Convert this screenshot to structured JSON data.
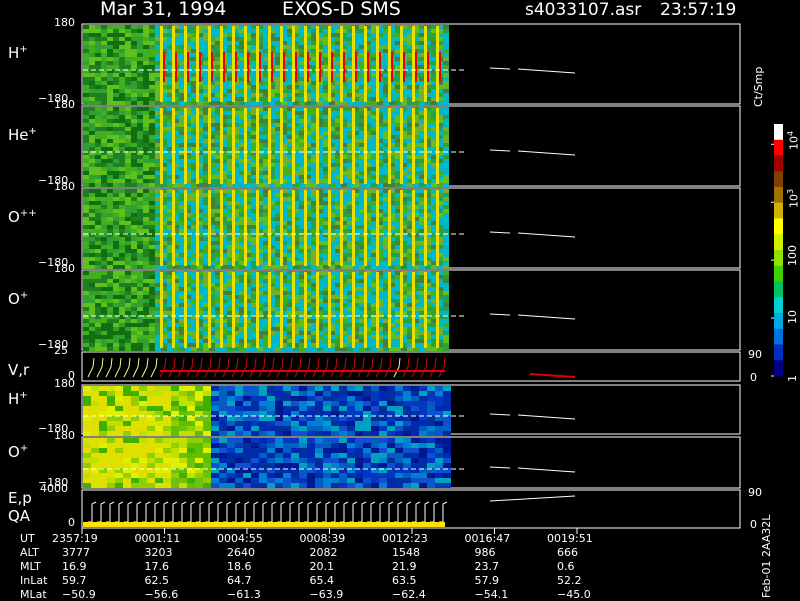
{
  "header": {
    "date": "Mar 31, 1994",
    "mission": "EXOS-D SMS",
    "file": "s4033107.asr",
    "time": "23:57:19"
  },
  "side_label": "Feb-01 2AA32L",
  "chart_data": {
    "type": "heatmap",
    "title": "Mar 31, 1994   EXOS-D SMS",
    "panels": [
      {
        "name": "H+",
        "species": "H",
        "charge": "+",
        "y_top": "180",
        "y_bottom": "−180",
        "pattern": "pitch"
      },
      {
        "name": "He+",
        "species": "He",
        "charge": "+",
        "y_top": "180",
        "y_bottom": "−180",
        "pattern": "pitch"
      },
      {
        "name": "O++",
        "species": "O",
        "charge": "++",
        "y_top": "180",
        "y_bottom": "−180",
        "pattern": "pitch"
      },
      {
        "name": "O+",
        "species": "O",
        "charge": "+",
        "y_top": "180",
        "y_bottom": "−180",
        "pattern": "pitch"
      },
      {
        "name": "V,r",
        "species": "V,r",
        "charge": "",
        "y_top": "25",
        "y_bottom": "0",
        "right_top": "90",
        "right_bottom": "0",
        "pattern": "line"
      },
      {
        "name": "H+",
        "species": "H",
        "charge": "+",
        "y_top": "180",
        "y_bottom": "−180",
        "pattern": "energy"
      },
      {
        "name": "O+",
        "species": "O",
        "charge": "+",
        "y_top": "180",
        "y_bottom": "−180",
        "pattern": "energy"
      },
      {
        "name": "E,p QA",
        "species": "E,p",
        "species2": "QA",
        "charge": "",
        "y_top": "4000",
        "y_bottom": "0",
        "right_top": "90",
        "right_bottom": "0",
        "pattern": "steps"
      }
    ],
    "colorbar": {
      "label": "Ct/Smp",
      "scale": "log",
      "ticks": [
        {
          "value": 1,
          "label": "1",
          "power": ""
        },
        {
          "value": 10,
          "label": "10",
          "power": ""
        },
        {
          "value": 100,
          "label": "100",
          "power": ""
        },
        {
          "value": 1000,
          "label": "10",
          "power": "3"
        },
        {
          "value": 10000,
          "label": "10",
          "power": "4"
        }
      ],
      "colors": [
        "#000080",
        "#0030c0",
        "#0070e0",
        "#00a8e0",
        "#00d0d0",
        "#00c060",
        "#40d000",
        "#90e000",
        "#d0f000",
        "#ffff00",
        "#d0b000",
        "#a07000",
        "#804000",
        "#a00000",
        "#ff0000",
        "#ffffff"
      ]
    },
    "footer": {
      "row_labels": [
        "UT",
        "ALT",
        "MLT",
        "InLat",
        "MLat"
      ],
      "columns": [
        [
          "2357:19",
          "3777",
          "16.9",
          "59.7",
          "−50.9"
        ],
        [
          "0001:11",
          "3203",
          "17.6",
          "62.5",
          "−56.6"
        ],
        [
          "0004:55",
          "2640",
          "18.6",
          "64.7",
          "−61.3"
        ],
        [
          "0008:39",
          "2082",
          "20.1",
          "65.4",
          "−63.9"
        ],
        [
          "0012:23",
          "1548",
          "21.9",
          "63.5",
          "−62.4"
        ],
        [
          "0016:47",
          "986",
          "23.7",
          "57.9",
          "−54.1"
        ],
        [
          "0019:51",
          "666",
          "0.6",
          "52.2",
          "−45.0"
        ]
      ]
    }
  }
}
